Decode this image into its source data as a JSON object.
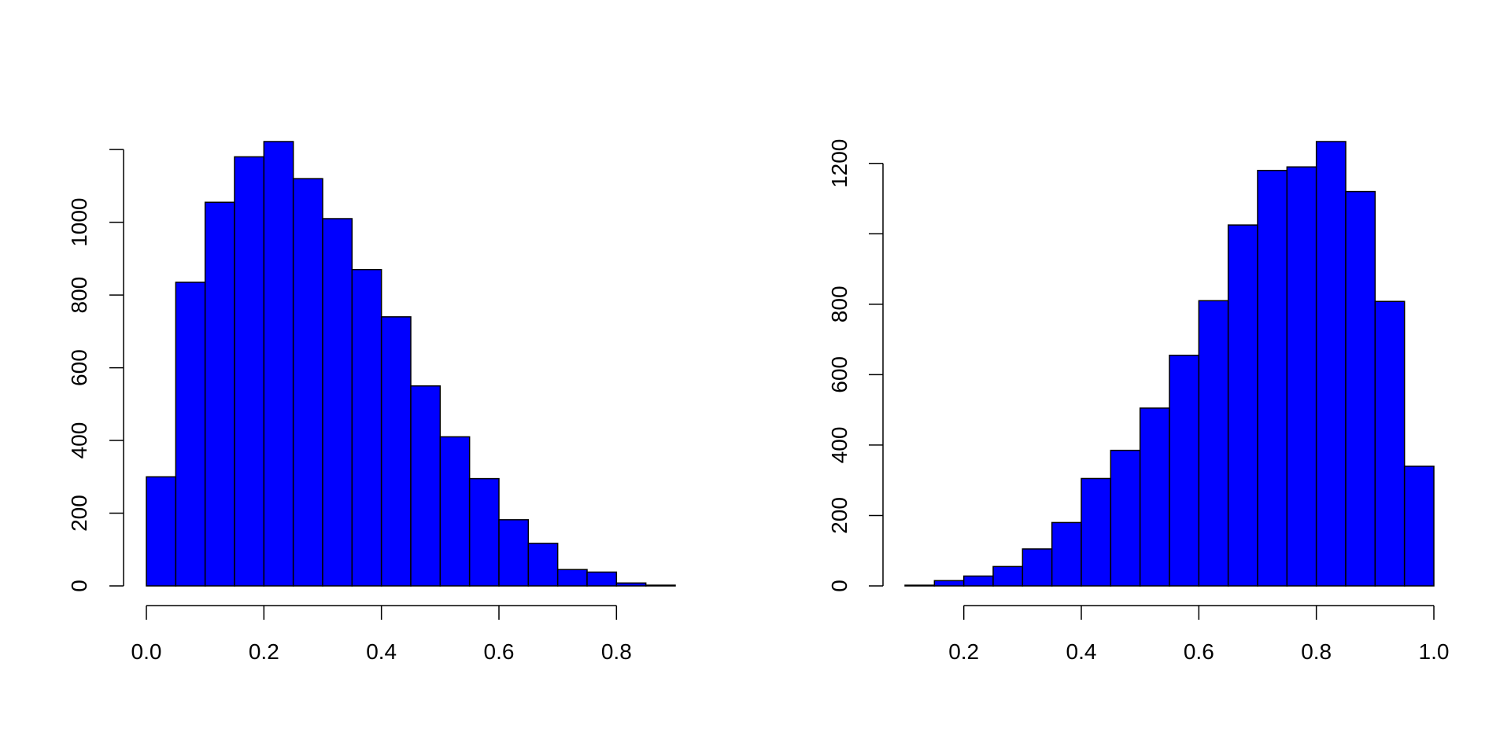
{
  "colors": {
    "bar_fill": "#0000FF",
    "bar_stroke": "#000000",
    "axis": "#000000",
    "background": "#FFFFFF"
  },
  "chart_data": [
    {
      "type": "bar",
      "bin_edges": [
        0.0,
        0.05,
        0.1,
        0.15,
        0.2,
        0.25,
        0.3,
        0.35,
        0.4,
        0.45,
        0.5,
        0.55,
        0.6,
        0.65,
        0.7,
        0.75,
        0.8,
        0.85,
        0.9
      ],
      "values": [
        300,
        835,
        1055,
        1180,
        1222,
        1120,
        1010,
        870,
        740,
        550,
        410,
        295,
        182,
        117,
        45,
        38,
        8,
        2
      ],
      "xlim": [
        0.0,
        0.9
      ],
      "ylim": [
        0,
        1222
      ],
      "x_ticks": [
        0.0,
        0.2,
        0.4,
        0.6,
        0.8
      ],
      "x_tick_labels": [
        "0.0",
        "0.2",
        "0.4",
        "0.6",
        "0.8"
      ],
      "y_ticks": [
        0,
        200,
        400,
        600,
        800,
        1000
      ],
      "y_tick_labels": [
        "0",
        "200",
        "400",
        "600",
        "800",
        "1000"
      ],
      "y_axis_extends_to": 1200,
      "grid": false
    },
    {
      "type": "bar",
      "bin_edges": [
        0.1,
        0.15,
        0.2,
        0.25,
        0.3,
        0.35,
        0.4,
        0.45,
        0.5,
        0.55,
        0.6,
        0.65,
        0.7,
        0.75,
        0.8,
        0.85,
        0.9,
        0.95,
        1.0
      ],
      "values": [
        2,
        15,
        28,
        55,
        105,
        180,
        305,
        385,
        505,
        655,
        810,
        1025,
        1180,
        1190,
        1262,
        1120,
        808,
        340
      ],
      "xlim": [
        0.1,
        1.0
      ],
      "ylim": [
        0,
        1262
      ],
      "x_ticks": [
        0.2,
        0.4,
        0.6,
        0.8,
        1.0
      ],
      "x_tick_labels": [
        "0.2",
        "0.4",
        "0.6",
        "0.8",
        "1.0"
      ],
      "y_ticks": [
        0,
        200,
        400,
        600,
        800,
        1000,
        1200
      ],
      "y_tick_labels": [
        "0",
        "200",
        "400",
        "600",
        "800",
        "",
        "1200"
      ],
      "grid": false
    }
  ]
}
